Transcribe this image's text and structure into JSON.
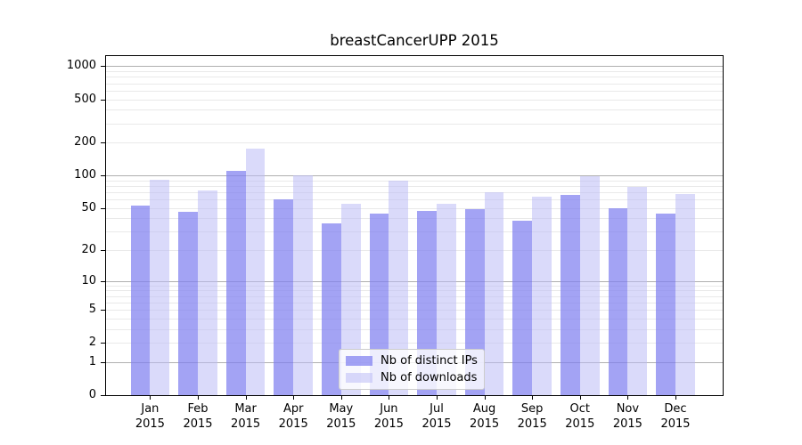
{
  "chart_data": {
    "type": "bar",
    "title": "breastCancerUPP 2015",
    "categories": [
      "Jan",
      "Feb",
      "Mar",
      "Apr",
      "May",
      "Jun",
      "Jul",
      "Aug",
      "Sep",
      "Oct",
      "Nov",
      "Dec"
    ],
    "year_label": "2015",
    "series": [
      {
        "name": "Nb of distinct IPs",
        "color": "rgba(127,127,240,0.72)",
        "values": [
          53,
          46,
          110,
          60,
          36,
          44,
          47,
          49,
          38,
          66,
          50,
          44
        ]
      },
      {
        "name": "Nb of downloads",
        "color": "rgba(187,187,245,0.55)",
        "values": [
          92,
          73,
          175,
          100,
          55,
          89,
          55,
          70,
          64,
          99,
          78,
          67
        ]
      }
    ],
    "yscale": "log10(1+v)",
    "yticks": [
      0,
      1,
      2,
      5,
      10,
      20,
      50,
      100,
      200,
      500,
      1000
    ],
    "ylim": [
      0,
      1240
    ],
    "grid": {
      "major": [
        1,
        10,
        100,
        1000
      ],
      "minor_bases": [
        2,
        3,
        4,
        5,
        6,
        7,
        8,
        9
      ],
      "minor_scales": [
        1,
        10,
        100
      ]
    },
    "legend_position": "lower center"
  },
  "colors": {
    "major_grid": "#b0b0b0",
    "minor_grid": "#e9e9e9",
    "spine": "#000000",
    "legend_border": "#cccccc",
    "text": "#000000",
    "background": "#ffffff"
  }
}
